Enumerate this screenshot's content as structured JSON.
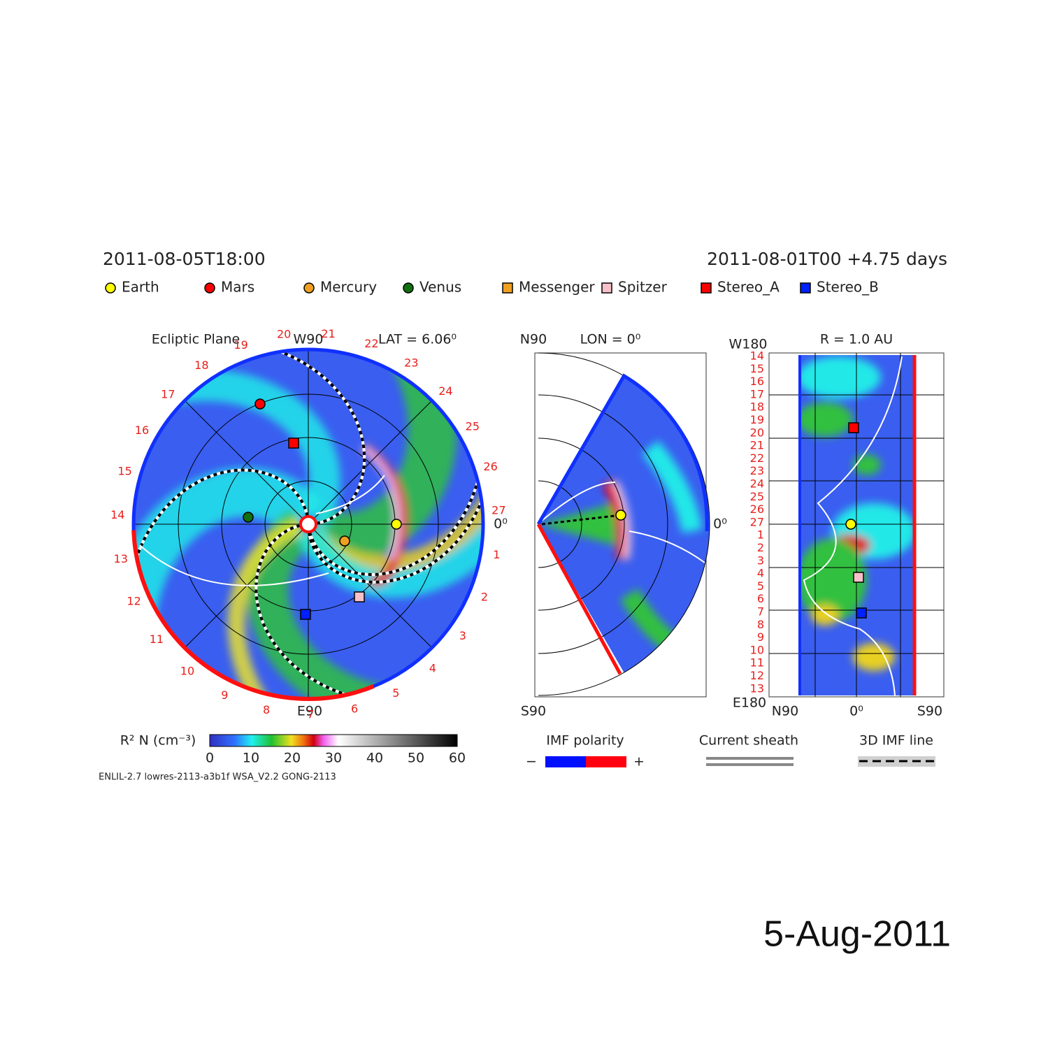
{
  "header": {
    "sim_time": "2011-08-05T18:00",
    "run_time": "2011-08-01T00 +4.75 days"
  },
  "legend": [
    {
      "label": "Earth",
      "color": "#ffff00",
      "shape": "circle"
    },
    {
      "label": "Mars",
      "color": "#ff0000",
      "shape": "circle"
    },
    {
      "label": "Mercury",
      "color": "#f0a020",
      "shape": "circle"
    },
    {
      "label": "Venus",
      "color": "#107010",
      "shape": "circle"
    },
    {
      "label": "Messenger",
      "color": "#f0a020",
      "shape": "square"
    },
    {
      "label": "Spitzer",
      "color": "#f8c0c8",
      "shape": "square"
    },
    {
      "label": "Stereo_A",
      "color": "#ff0000",
      "shape": "square"
    },
    {
      "label": "Stereo_B",
      "color": "#0020ff",
      "shape": "square"
    }
  ],
  "ecliptic": {
    "title": "Ecliptic Plane",
    "top_label": "W90",
    "bottom_label": "E90",
    "right_label": "0⁰",
    "lat": "LAT = 6.06⁰",
    "day_labels": [
      "1",
      "2",
      "3",
      "4",
      "5",
      "6",
      "7",
      "8",
      "9",
      "10",
      "11",
      "12",
      "13",
      "14",
      "15",
      "16",
      "17",
      "18",
      "19",
      "20",
      "21",
      "22",
      "23",
      "24",
      "25",
      "26",
      "27"
    ]
  },
  "meridional": {
    "top": "N90",
    "bottom": "S90",
    "lon": "LON = 0⁰",
    "right": "0⁰"
  },
  "radial": {
    "title": "R = 1.0 AU",
    "top": "W180",
    "bottom": "E180",
    "x_labels": [
      "N90",
      "0⁰",
      "S90"
    ],
    "day_labels": [
      "14",
      "15",
      "16",
      "17",
      "18",
      "19",
      "20",
      "21",
      "22",
      "23",
      "24",
      "25",
      "26",
      "27",
      "1",
      "2",
      "3",
      "4",
      "5",
      "6",
      "7",
      "8",
      "9",
      "10",
      "11",
      "12",
      "13"
    ]
  },
  "colorbar": {
    "label": "R² N (cm⁻³)",
    "ticks": [
      0,
      10,
      20,
      30,
      40,
      50,
      60
    ]
  },
  "imf": {
    "title": "IMF polarity",
    "minus": "−",
    "plus": "+"
  },
  "sheath": "Current sheath",
  "imf_line": "3D IMF line",
  "footer": "ENLIL-2.7 lowres-2113-a3b1f WSA_V2.2 GONG-2113",
  "date": "5-Aug-2011"
}
